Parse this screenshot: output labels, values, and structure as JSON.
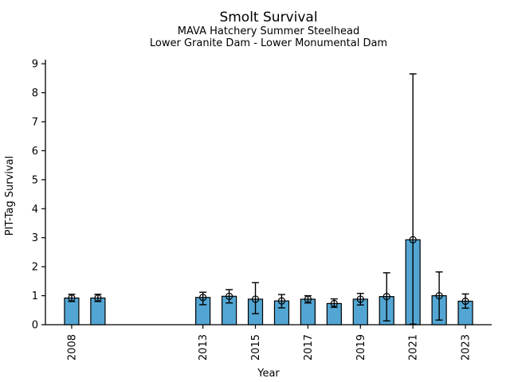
{
  "chart_data": {
    "type": "bar",
    "title": "Smolt Survival",
    "subtitle1": "MAVA Hatchery Summer Steelhead",
    "subtitle2": "Lower Granite Dam - Lower Monumental Dam",
    "xlabel": "Year",
    "ylabel": "PIT-Tag Survival",
    "ylim": [
      0,
      9
    ],
    "yticks": [
      0,
      1,
      2,
      3,
      4,
      5,
      6,
      7,
      8,
      9
    ],
    "xticks": [
      2008,
      2013,
      2015,
      2017,
      2019,
      2021,
      2023
    ],
    "legend": null,
    "grid": false,
    "bar_color": "#53a6d3",
    "bar_edge_color": "#000000",
    "error_color": "#000000",
    "marker": "open-circle",
    "series": [
      {
        "year": 2008,
        "value": 0.92,
        "ci_low": 0.8,
        "ci_high": 1.05
      },
      {
        "year": 2009,
        "value": 0.92,
        "ci_low": 0.8,
        "ci_high": 1.05
      },
      {
        "year": 2013,
        "value": 0.94,
        "ci_low": 0.69,
        "ci_high": 1.12
      },
      {
        "year": 2014,
        "value": 0.98,
        "ci_low": 0.75,
        "ci_high": 1.21
      },
      {
        "year": 2015,
        "value": 0.88,
        "ci_low": 0.38,
        "ci_high": 1.45
      },
      {
        "year": 2016,
        "value": 0.82,
        "ci_low": 0.58,
        "ci_high": 1.04
      },
      {
        "year": 2017,
        "value": 0.88,
        "ci_low": 0.75,
        "ci_high": 1.0
      },
      {
        "year": 2018,
        "value": 0.73,
        "ci_low": 0.6,
        "ci_high": 0.89
      },
      {
        "year": 2019,
        "value": 0.88,
        "ci_low": 0.68,
        "ci_high": 1.08
      },
      {
        "year": 2020,
        "value": 0.97,
        "ci_low": 0.13,
        "ci_high": 1.79
      },
      {
        "year": 2021,
        "value": 2.93,
        "ci_low": 0.02,
        "ci_high": 8.65
      },
      {
        "year": 2022,
        "value": 1.0,
        "ci_low": 0.16,
        "ci_high": 1.82
      },
      {
        "year": 2023,
        "value": 0.81,
        "ci_low": 0.57,
        "ci_high": 1.06
      }
    ]
  }
}
